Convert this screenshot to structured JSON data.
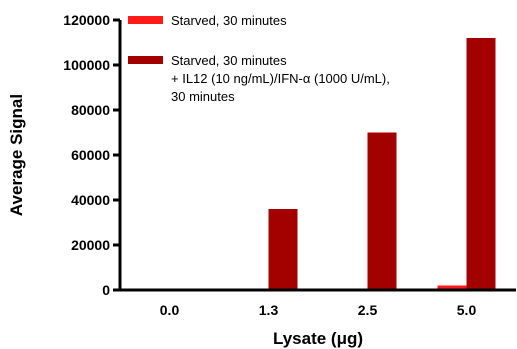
{
  "chart_data": {
    "type": "bar",
    "categories": [
      "0.0",
      "1.3",
      "2.5",
      "5.0"
    ],
    "series": [
      {
        "name": "Starved, 30 minutes",
        "color": "#ff1a1a",
        "values": [
          0,
          0,
          0,
          2000
        ]
      },
      {
        "name": "Starved, 30 minutes + IL12 (10 ng/mL)/IFN-α (1000 U/mL), 30 minutes",
        "color": "#a30000",
        "values": [
          0,
          36000,
          70000,
          112000
        ]
      }
    ],
    "legend_lines": [
      [
        "Starved, 30 minutes"
      ],
      [
        "Starved, 30 minutes",
        "+ IL12 (10 ng/mL)/IFN-α (1000 U/mL),",
        "30 minutes"
      ]
    ],
    "xlabel": "Lysate (μg)",
    "ylabel": "Average Signal",
    "ylim": [
      0,
      120000
    ],
    "yticks": [
      "0",
      "20000",
      "40000",
      "60000",
      "80000",
      "100000",
      "120000"
    ],
    "grid": false,
    "legend_position": "top-left"
  }
}
